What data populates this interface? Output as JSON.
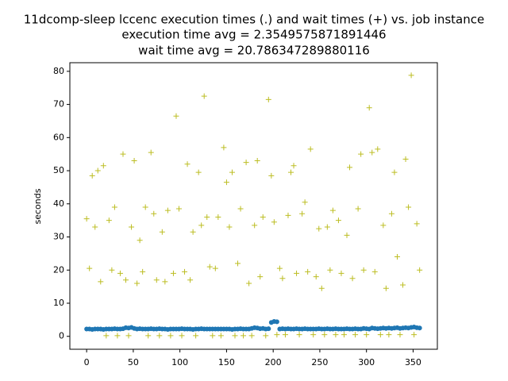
{
  "chart_data": {
    "type": "scatter",
    "title_lines": [
      "11dcomp-sleep lccenc execution times (.) and wait times (+) vs. job instance",
      "execution time avg = 2.3549575871891446",
      "wait time avg = 20.786347289880116"
    ],
    "y_label": "seconds",
    "xlim": [
      -18,
      376
    ],
    "ylim": [
      -3.9,
      82.6
    ],
    "xticks": [
      0,
      50,
      100,
      150,
      200,
      250,
      300,
      350
    ],
    "yticks": [
      0,
      10,
      20,
      30,
      40,
      50,
      60,
      70,
      80
    ],
    "x": [
      0,
      3,
      6,
      9,
      12,
      15,
      18,
      21,
      24,
      27,
      30,
      33,
      36,
      39,
      42,
      45,
      48,
      51,
      54,
      57,
      60,
      63,
      66,
      69,
      72,
      75,
      78,
      81,
      84,
      87,
      90,
      93,
      96,
      99,
      102,
      105,
      108,
      111,
      114,
      117,
      120,
      123,
      126,
      129,
      132,
      135,
      138,
      141,
      144,
      147,
      150,
      153,
      156,
      159,
      162,
      165,
      168,
      171,
      174,
      177,
      180,
      183,
      186,
      189,
      192,
      195,
      198,
      201,
      204,
      207,
      210,
      213,
      216,
      219,
      222,
      225,
      228,
      231,
      234,
      237,
      240,
      243,
      246,
      249,
      252,
      255,
      258,
      261,
      264,
      267,
      270,
      273,
      276,
      279,
      282,
      285,
      288,
      291,
      294,
      297,
      300,
      303,
      306,
      309,
      312,
      315,
      318,
      321,
      324,
      327,
      330,
      333,
      336,
      339,
      342,
      345,
      348,
      351,
      354,
      357
    ],
    "series": [
      {
        "name": "execution times",
        "marker": "dot",
        "color": "#1f77b4",
        "values": [
          2.2,
          2.2,
          2.1,
          2.2,
          2.2,
          2.2,
          2.1,
          2.2,
          2.2,
          2.2,
          2.3,
          2.2,
          2.2,
          2.3,
          2.6,
          2.5,
          2.7,
          2.4,
          2.2,
          2.3,
          2.2,
          2.2,
          2.2,
          2.3,
          2.2,
          2.2,
          2.3,
          2.2,
          2.2,
          2.1,
          2.2,
          2.2,
          2.2,
          2.2,
          2.3,
          2.2,
          2.2,
          2.2,
          2.1,
          2.2,
          2.2,
          2.3,
          2.2,
          2.2,
          2.2,
          2.2,
          2.2,
          2.2,
          2.2,
          2.2,
          2.2,
          2.2,
          2.1,
          2.2,
          2.2,
          2.3,
          2.2,
          2.2,
          2.2,
          2.4,
          2.6,
          2.5,
          2.3,
          2.4,
          2.2,
          2.3,
          4.2,
          4.5,
          4.4,
          2.2,
          2.3,
          2.2,
          2.3,
          2.2,
          2.2,
          2.3,
          2.2,
          2.2,
          2.3,
          2.2,
          2.2,
          2.2,
          2.2,
          2.3,
          2.2,
          2.2,
          2.3,
          2.2,
          2.2,
          2.3,
          2.2,
          2.2,
          2.2,
          2.3,
          2.2,
          2.2,
          2.3,
          2.2,
          2.2,
          2.4,
          2.3,
          2.2,
          2.5,
          2.4,
          2.3,
          2.4,
          2.5,
          2.4,
          2.5,
          2.4,
          2.5,
          2.6,
          2.4,
          2.5,
          2.6,
          2.5,
          2.7,
          2.8,
          2.6,
          2.5
        ]
      },
      {
        "name": "wait times",
        "marker": "plus",
        "color": "#bcbd22",
        "values": [
          35.5,
          20.5,
          48.5,
          33,
          50,
          16.5,
          51.5,
          0.2,
          35,
          20,
          39,
          0.2,
          19,
          55,
          17,
          0.2,
          33,
          53,
          16,
          29,
          19.5,
          39,
          0.2,
          55.5,
          37,
          17,
          0.2,
          31.5,
          16.5,
          38,
          0.2,
          19,
          66.5,
          38.5,
          0.2,
          19.5,
          52,
          17,
          31.5,
          0.2,
          49.5,
          33.5,
          72.5,
          36,
          21,
          0.2,
          20.5,
          36,
          0.2,
          57,
          46.5,
          33,
          49.5,
          0.2,
          22,
          38.5,
          0.2,
          52.5,
          16,
          0.2,
          33.5,
          53,
          18,
          36,
          0.2,
          71.5,
          48.5,
          34.5,
          0.5,
          20.5,
          17.5,
          0.5,
          36.5,
          49.5,
          51.5,
          19,
          0.5,
          37,
          40.5,
          19.5,
          56.5,
          0.5,
          18,
          32.5,
          14.5,
          0.5,
          33,
          20,
          38,
          0.5,
          35,
          19,
          0.5,
          30.5,
          51,
          17.5,
          0.5,
          38.5,
          55,
          20,
          0.5,
          69,
          55.5,
          19.5,
          56.5,
          0.5,
          33.5,
          14.5,
          0.5,
          37,
          49.5,
          24,
          0.5,
          15.5,
          53.5,
          39,
          78.8,
          0.5,
          34,
          20
        ]
      }
    ]
  }
}
